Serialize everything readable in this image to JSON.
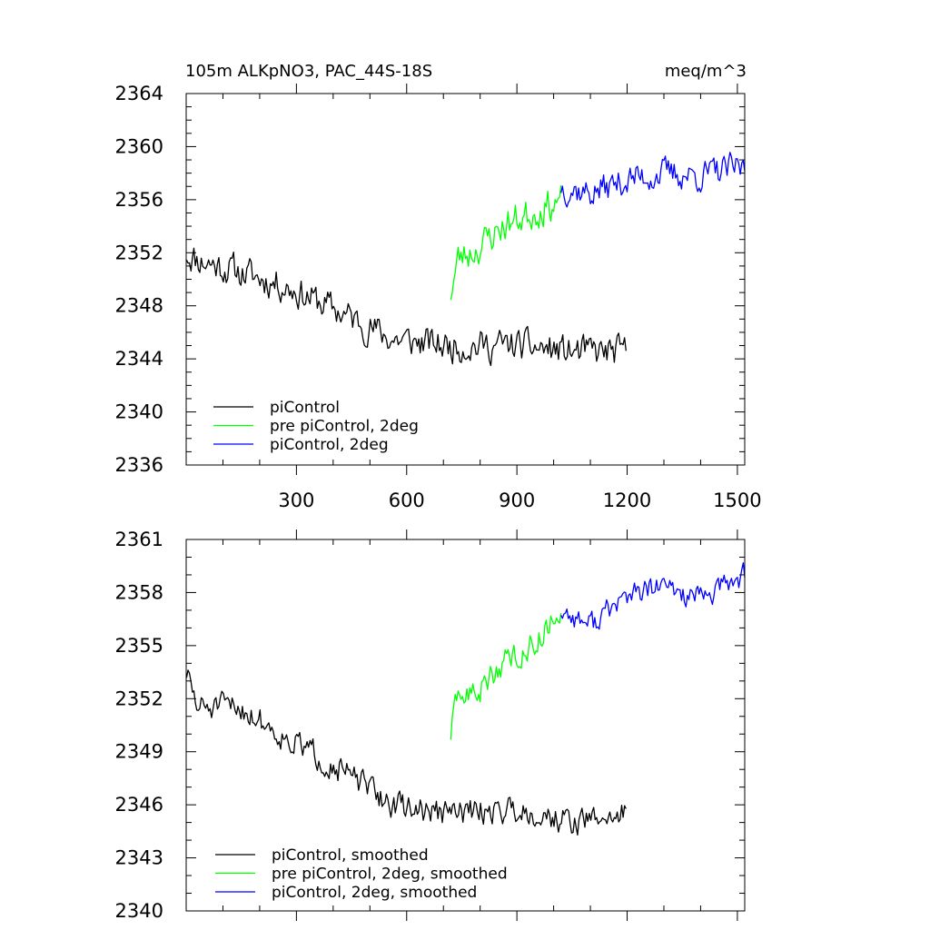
{
  "chart_data": [
    {
      "type": "line",
      "title_left": "105m ALKpNO3, PAC_44S-18S",
      "title_right": "meq/m^3",
      "xlim": [
        0,
        1520
      ],
      "ylim": [
        2336,
        2364
      ],
      "x_ticks": [
        300,
        600,
        900,
        1200,
        1500
      ],
      "y_ticks": [
        2336,
        2340,
        2344,
        2348,
        2352,
        2356,
        2360,
        2364
      ],
      "x_minor_step": 100,
      "y_minor_step": 1,
      "legend_position": "bottom-left",
      "series": [
        {
          "name": "piControl",
          "color": "#000000",
          "x_start": 1,
          "x_end": 1200,
          "x_step": 4,
          "keyframes": [
            [
              1,
              2352
            ],
            [
              30,
              2351.5
            ],
            [
              150,
              2350.5
            ],
            [
              270,
              2349.5
            ],
            [
              420,
              2347.5
            ],
            [
              560,
              2345.5
            ],
            [
              700,
              2345
            ],
            [
              900,
              2345
            ],
            [
              1050,
              2344.5
            ],
            [
              1200,
              2344.5
            ]
          ],
          "amplitude": 1.9,
          "seed": 11
        },
        {
          "name": "pre piControl, 2deg",
          "color": "#00ff00",
          "x_start": 720,
          "x_end": 1020,
          "x_step": 4,
          "keyframes": [
            [
              720,
              2349
            ],
            [
              740,
              2351.5
            ],
            [
              800,
              2352.5
            ],
            [
              860,
              2354
            ],
            [
              940,
              2355
            ],
            [
              1020,
              2356
            ]
          ],
          "amplitude": 2.0,
          "seed": 23
        },
        {
          "name": "piControl, 2deg",
          "color": "#0000ff",
          "x_start": 1020,
          "x_end": 1520,
          "x_step": 4,
          "keyframes": [
            [
              1020,
              2357
            ],
            [
              1100,
              2356.5
            ],
            [
              1200,
              2357.5
            ],
            [
              1300,
              2358
            ],
            [
              1400,
              2357.8
            ],
            [
              1520,
              2358.5
            ]
          ],
          "amplitude": 1.8,
          "seed": 37
        }
      ]
    },
    {
      "type": "line",
      "title_left": "",
      "title_right": "",
      "xlim": [
        0,
        1520
      ],
      "ylim": [
        2340,
        2361
      ],
      "x_ticks": [
        300,
        600,
        900,
        1200,
        1500
      ],
      "y_ticks": [
        2340,
        2343,
        2346,
        2349,
        2352,
        2355,
        2358,
        2361
      ],
      "x_minor_step": 100,
      "y_minor_step": 1,
      "show_x_labels": false,
      "legend_position": "bottom-left",
      "series": [
        {
          "name": "piControl, smoothed",
          "color": "#000000",
          "x_start": 1,
          "x_end": 1200,
          "x_step": 4,
          "keyframes": [
            [
              1,
              2353.5
            ],
            [
              30,
              2351.5
            ],
            [
              150,
              2351.5
            ],
            [
              270,
              2349.8
            ],
            [
              420,
              2348
            ],
            [
              560,
              2346
            ],
            [
              700,
              2345.5
            ],
            [
              900,
              2345.8
            ],
            [
              1050,
              2345
            ],
            [
              1200,
              2345.5
            ]
          ],
          "amplitude": 1.2,
          "seed": 51
        },
        {
          "name": "pre piControl, 2deg, smoothed",
          "color": "#00ff00",
          "x_start": 720,
          "x_end": 1020,
          "x_step": 4,
          "keyframes": [
            [
              720,
              2350
            ],
            [
              740,
              2352
            ],
            [
              800,
              2352.5
            ],
            [
              860,
              2354
            ],
            [
              940,
              2355
            ],
            [
              1020,
              2357
            ]
          ],
          "amplitude": 1.2,
          "seed": 63
        },
        {
          "name": "piControl, 2deg, smoothed",
          "color": "#0000ff",
          "x_start": 1020,
          "x_end": 1520,
          "x_step": 4,
          "keyframes": [
            [
              1020,
              2357
            ],
            [
              1100,
              2356.2
            ],
            [
              1200,
              2357.8
            ],
            [
              1300,
              2358.3
            ],
            [
              1400,
              2357.6
            ],
            [
              1520,
              2359
            ]
          ],
          "amplitude": 1.1,
          "seed": 77
        }
      ]
    }
  ]
}
